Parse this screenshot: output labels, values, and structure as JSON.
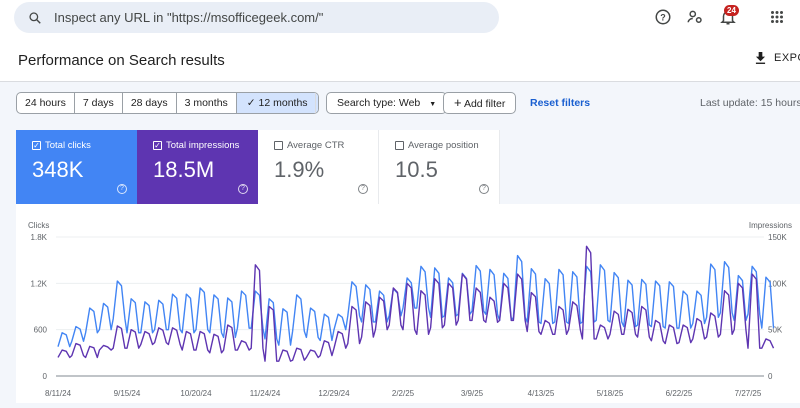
{
  "search": {
    "placeholder": "Inspect any URL in \"https://msofficegeek.com/\""
  },
  "header": {
    "notification_count": "24",
    "export_label": "EXPO"
  },
  "page_title": "Performance on Search results",
  "filters": {
    "date_ranges": [
      "24 hours",
      "7 days",
      "28 days",
      "3 months",
      "12 months"
    ],
    "selected_range": "12 months",
    "search_type": "Search type: Web",
    "add_filter": "Add filter",
    "reset": "Reset filters",
    "last_update": "Last update: 15 hours"
  },
  "metrics": [
    {
      "label": "Total clicks",
      "value": "348K",
      "checked": true,
      "color": "#4285f4"
    },
    {
      "label": "Total impressions",
      "value": "18.5M",
      "checked": true,
      "color": "#5e35b1"
    },
    {
      "label": "Average CTR",
      "value": "1.9%",
      "checked": false
    },
    {
      "label": "Average position",
      "value": "10.5",
      "checked": false
    }
  ],
  "chart_data": {
    "type": "line",
    "left_axis_label": "Clicks",
    "right_axis_label": "Impressions",
    "left_ticks": [
      "0",
      "600",
      "1.2K",
      "1.8K"
    ],
    "right_ticks": [
      "0",
      "50K",
      "100K",
      "150K"
    ],
    "ylim_left": [
      0,
      1800
    ],
    "ylim_right": [
      0,
      150000
    ],
    "x_ticks": [
      "8/11/24",
      "9/15/24",
      "10/20/24",
      "11/24/24",
      "12/29/24",
      "2/2/25",
      "3/9/25",
      "4/13/25",
      "5/18/25",
      "6/22/25",
      "7/27/25"
    ],
    "grid": true,
    "series": [
      {
        "name": "Clicks",
        "axis": "left",
        "color": "#4285f4",
        "weekly_peak_trough": [
          [
            560,
            380
          ],
          [
            640,
            450
          ],
          [
            880,
            560
          ],
          [
            940,
            600
          ],
          [
            1230,
            740
          ],
          [
            1000,
            560
          ],
          [
            960,
            560
          ],
          [
            980,
            600
          ],
          [
            1060,
            600
          ],
          [
            1060,
            560
          ],
          [
            1140,
            600
          ],
          [
            1050,
            560
          ],
          [
            1010,
            500
          ],
          [
            1100,
            620
          ],
          [
            1100,
            620
          ],
          [
            1000,
            480
          ],
          [
            870,
            400
          ],
          [
            1050,
            580
          ],
          [
            880,
            500
          ],
          [
            800,
            460
          ],
          [
            800,
            600
          ],
          [
            1220,
            780
          ],
          [
            1180,
            700
          ],
          [
            1100,
            700
          ],
          [
            1130,
            780
          ],
          [
            1270,
            880
          ],
          [
            1420,
            880
          ],
          [
            1400,
            760
          ],
          [
            1270,
            780
          ],
          [
            1330,
            800
          ],
          [
            1430,
            840
          ],
          [
            1380,
            800
          ],
          [
            1330,
            720
          ],
          [
            1560,
            760
          ],
          [
            1390,
            700
          ],
          [
            1260,
            680
          ],
          [
            1380,
            700
          ],
          [
            1350,
            680
          ],
          [
            1420,
            700
          ],
          [
            1440,
            720
          ],
          [
            1340,
            700
          ],
          [
            1240,
            640
          ],
          [
            1250,
            660
          ],
          [
            1230,
            640
          ],
          [
            1220,
            620
          ],
          [
            1100,
            620
          ],
          [
            1100,
            680
          ],
          [
            1450,
            760
          ],
          [
            1480,
            820
          ],
          [
            1300,
            720
          ],
          [
            1420,
            800
          ],
          [
            1280,
            620
          ]
        ]
      },
      {
        "name": "Impressions",
        "axis": "right",
        "color": "#5e35b1",
        "weekly_peak_trough": [
          [
            28000,
            20000
          ],
          [
            35000,
            22000
          ],
          [
            32000,
            20000
          ],
          [
            33000,
            28000
          ],
          [
            54000,
            30000
          ],
          [
            50000,
            30000
          ],
          [
            48000,
            34000
          ],
          [
            52000,
            36000
          ],
          [
            52000,
            34000
          ],
          [
            48000,
            28000
          ],
          [
            48000,
            28000
          ],
          [
            45000,
            25000
          ],
          [
            55000,
            28000
          ],
          [
            38000,
            28000
          ],
          [
            120000,
            30000
          ],
          [
            75000,
            16000
          ],
          [
            28000,
            16000
          ],
          [
            30000,
            17000
          ],
          [
            28000,
            20000
          ],
          [
            38000,
            22000
          ],
          [
            48000,
            30000
          ],
          [
            75000,
            35000
          ],
          [
            80000,
            42000
          ],
          [
            85000,
            50000
          ],
          [
            95000,
            55000
          ],
          [
            100000,
            50000
          ],
          [
            92000,
            45000
          ],
          [
            105000,
            52000
          ],
          [
            100000,
            55000
          ],
          [
            110000,
            60000
          ],
          [
            95000,
            60000
          ],
          [
            85000,
            58000
          ],
          [
            100000,
            60000
          ],
          [
            110000,
            60000
          ],
          [
            90000,
            48000
          ],
          [
            60000,
            45000
          ],
          [
            75000,
            45000
          ],
          [
            80000,
            50000
          ],
          [
            140000,
            40000
          ],
          [
            55000,
            40000
          ],
          [
            70000,
            45000
          ],
          [
            72000,
            45000
          ],
          [
            75000,
            42000
          ],
          [
            60000,
            38000
          ],
          [
            55000,
            35000
          ],
          [
            55000,
            36000
          ],
          [
            62000,
            40000
          ],
          [
            68000,
            42000
          ],
          [
            92000,
            45000
          ],
          [
            100000,
            50000
          ],
          [
            110000,
            30000
          ],
          [
            40000,
            30000
          ]
        ]
      }
    ]
  }
}
